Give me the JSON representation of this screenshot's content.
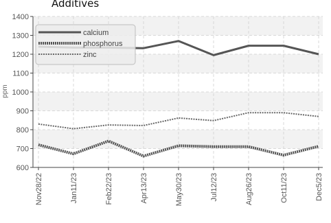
{
  "chart_data": {
    "type": "line",
    "title": "Additives",
    "ylabel": "ppm",
    "xlabel": "",
    "categories": [
      "Nov28/22",
      "Jan11/23",
      "Feb22/23",
      "Apr13/23",
      "May30/23",
      "Jul12/23",
      "Aug26/23",
      "Oct11/23",
      "Dec5/23"
    ],
    "ylim": [
      600,
      1400
    ],
    "yticks": [
      600,
      700,
      800,
      900,
      1000,
      1100,
      1200,
      1300,
      1400
    ],
    "grid": true,
    "legend_position": "top-left",
    "series": [
      {
        "name": "calcium",
        "values": [
          1240,
          1235,
          1235,
          1232,
          1270,
          1195,
          1245,
          1245,
          1200
        ],
        "color": "#555555",
        "style": "solid"
      },
      {
        "name": "phosphorus",
        "values": [
          720,
          672,
          740,
          660,
          715,
          710,
          710,
          665,
          712
        ],
        "color": "#555555",
        "style": "dotted-heavy"
      },
      {
        "name": "zinc",
        "values": [
          830,
          805,
          825,
          822,
          862,
          848,
          890,
          890,
          870
        ],
        "color": "#666666",
        "style": "dotted-light"
      }
    ]
  }
}
